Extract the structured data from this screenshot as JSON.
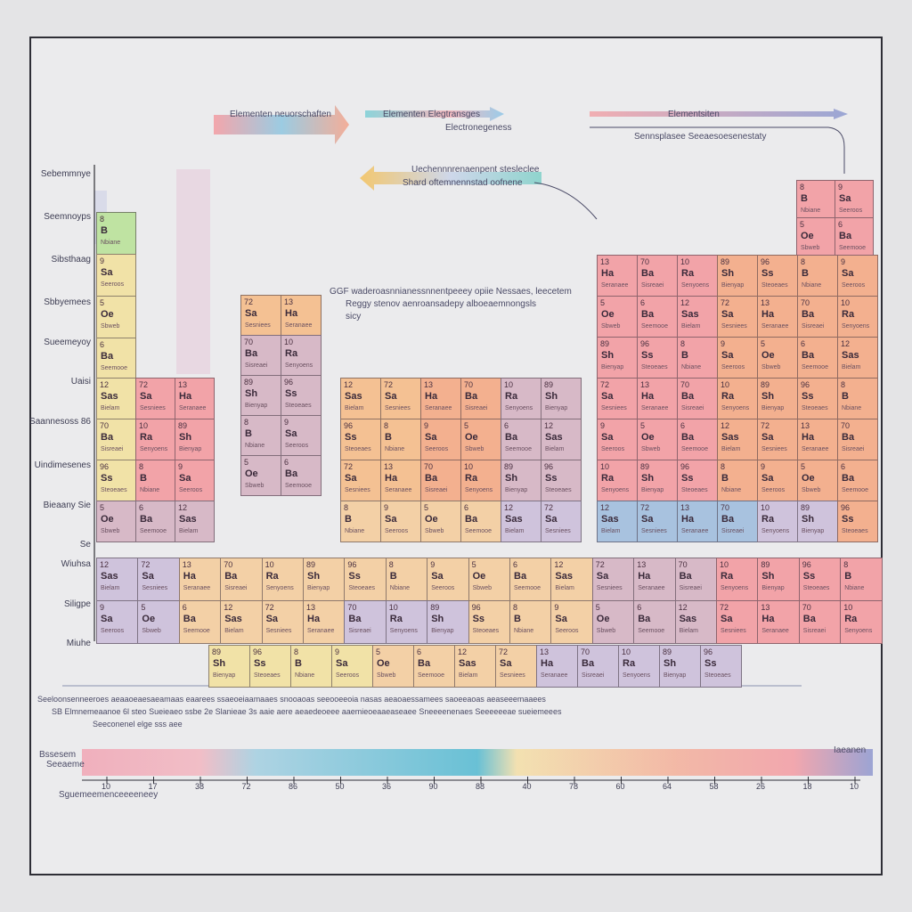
{
  "colors": {
    "frame": "#2e2e36",
    "background": "#ebebed",
    "pink": "#f2a3a8",
    "salmon": "#f3b08f",
    "orange": "#f4c193",
    "peach": "#f3d0a6",
    "yellow": "#f1e2a7",
    "green": "#bfe3a2",
    "blue": "#a8c2df",
    "lavender": "#cfc3dc",
    "mauve": "#d7b9c7"
  },
  "legend": {
    "arrow_1_text": "Elementen neuorschaften",
    "arrow_2_text": "Elementen Elegtransges",
    "arrow_2_sub": "Electronegeness",
    "arrow_3_text": "Elementsiten",
    "arrow_3_sub": "Sennsplasee Seeaesoesenestaty",
    "arrow_4_text": "Uechennnrenaenpent stesleclee",
    "arrow_4_sub": "Shard oftemnennstad oofnene",
    "note_line_1": "GGF waderoasnnianessnnentpeeey opiie Nessaes, leecetem",
    "note_line_2": "Reggy stenov aenroansadepy alboeaemnongsls",
    "note_line_3": "sicy"
  },
  "row_labels": [
    "Sebemmnye",
    "Seemnoyps",
    "Sibsthaag",
    "Sbbyemees",
    "Sueemeyoy",
    "Uaisi",
    "Saannesoss 86",
    "Uindimesenes",
    "Bieaany Sie",
    "Se",
    "Wiuhsa",
    "Siligpe",
    "Miuhe"
  ],
  "cells": [
    {
      "n": "8",
      "s": "B",
      "t": "Nbiane",
      "c": "green"
    },
    {
      "n": "9",
      "s": "Sa",
      "t": "Seeroos",
      "c": "yellow"
    },
    {
      "n": "5",
      "s": "Oe",
      "t": "Sbweb",
      "c": "yellow"
    },
    {
      "n": "6",
      "s": "Ba",
      "t": "Seemooe",
      "c": "yellow"
    },
    {
      "n": "12",
      "s": "Sas",
      "t": "Bielam",
      "c": "peach"
    },
    {
      "n": "72",
      "s": "Sa",
      "t": "Sesniees",
      "c": "orange"
    },
    {
      "n": "13",
      "s": "Ha",
      "t": "Seranaee",
      "c": "pink"
    },
    {
      "n": "70",
      "s": "Ba",
      "t": "Sisreaei",
      "c": "salmon"
    },
    {
      "n": "10",
      "s": "Ra",
      "t": "Senyoens",
      "c": "mauve"
    },
    {
      "n": "89",
      "s": "Sh",
      "t": "Bienyap",
      "c": "blue"
    },
    {
      "n": "96",
      "s": "Ss",
      "t": "Steoeaes",
      "c": "lavender"
    }
  ],
  "scale": {
    "left_label": "Bssesem",
    "left_sub": "Seeaeme",
    "right_label": "Iaeanen",
    "bottom_label": "Sguemeemenceeeeneey",
    "ticks": [
      "10",
      "17",
      "38",
      "72",
      "86",
      "50",
      "36",
      "90",
      "88",
      "40",
      "78",
      "60",
      "64",
      "58",
      "26",
      "18",
      "10"
    ]
  },
  "footnote_line_1": "Seeloonsenneeroes  aeaaoeaesaeamaas  eaarees  ssaeoeiaamaaes  snooaoas  seeooeeoia  nasas  aeaoaessamees  saoeeaoas  aeaseeemaaees",
  "footnote_line_2": "SB Elmnemeaanoe  6l  steo  Sueieaeo  ssbe  2e  Slanieae  3s  aaie aere  aeaedeoeee  aaemieoeaaeaseaee  Sneeeenenaes  Seeeeeeae  sueiemeees",
  "footnote_line_3": "Seeconenel elge                                                   sss                                                              aee"
}
